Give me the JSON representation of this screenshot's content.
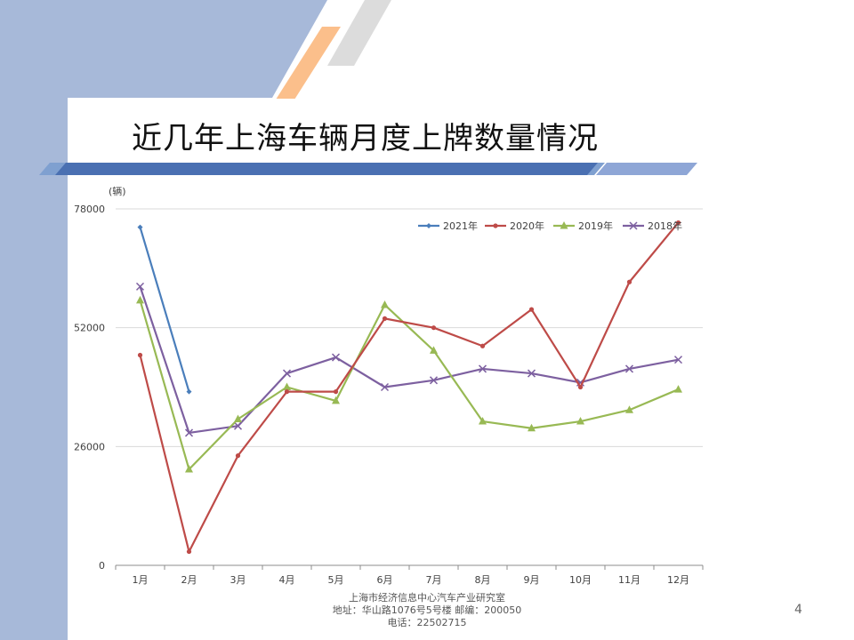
{
  "slide": {
    "title": "近几年上海车辆月度上牌数量情况",
    "page_number": "4"
  },
  "footer": {
    "line1": "上海市经济信息中心汽车产业研究室",
    "line2": "地址：华山路1076号5号楼   邮编：200050",
    "line3": "电话：22502715"
  },
  "chart_data": {
    "type": "line",
    "title": "",
    "unit_label": "(辆)",
    "categories": [
      "1月",
      "2月",
      "3月",
      "4月",
      "5月",
      "6月",
      "7月",
      "8月",
      "9月",
      "10月",
      "11月",
      "12月"
    ],
    "ylim": [
      0,
      78000
    ],
    "yticks": [
      0,
      26000,
      52000,
      78000
    ],
    "grid": true,
    "legend_position": "top-right",
    "series": [
      {
        "name": "2021年",
        "color": "#4a7ebb",
        "marker": "diamond",
        "values": [
          74000,
          38000,
          null,
          null,
          null,
          null,
          null,
          null,
          null,
          null,
          null,
          null
        ]
      },
      {
        "name": "2020年",
        "color": "#be4b48",
        "marker": "circle",
        "values": [
          46000,
          3000,
          24000,
          38000,
          38000,
          54000,
          52000,
          48000,
          56000,
          39000,
          62000,
          75000
        ]
      },
      {
        "name": "2019年",
        "color": "#98b954",
        "marker": "triangle",
        "values": [
          58000,
          21000,
          32000,
          39000,
          36000,
          57000,
          47000,
          31500,
          30000,
          31500,
          34000,
          38500
        ]
      },
      {
        "name": "2018年",
        "color": "#7d60a0",
        "marker": "x",
        "values": [
          61000,
          29000,
          30500,
          42000,
          45500,
          39000,
          40500,
          43000,
          42000,
          40000,
          43000,
          45000
        ]
      }
    ]
  }
}
